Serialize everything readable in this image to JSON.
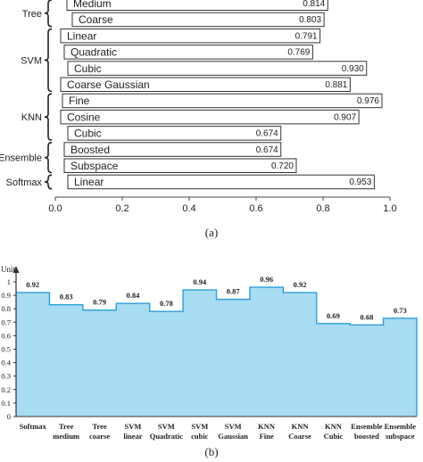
{
  "chart_data": [
    {
      "type": "bar",
      "orientation": "horizontal",
      "caption": "(a)",
      "groups": [
        {
          "name": "Tree",
          "items": [
            0,
            1
          ]
        },
        {
          "name": "SVM",
          "items": [
            2,
            3,
            4,
            5
          ]
        },
        {
          "name": "KNN",
          "items": [
            6,
            7,
            8
          ]
        },
        {
          "name": "Ensemble",
          "items": [
            9,
            10
          ]
        },
        {
          "name": "Softmax",
          "items": [
            11
          ]
        }
      ],
      "categories": [
        "Medium",
        "Coarse",
        "Linear",
        "Quadratic",
        "Cubic",
        "Coarse Gaussian",
        "Fine",
        "Cosine",
        "Cubic",
        "Boosted",
        "Subspace",
        "Linear"
      ],
      "values": [
        0.814,
        0.803,
        0.791,
        0.769,
        0.93,
        0.881,
        0.976,
        0.907,
        0.674,
        0.674,
        0.72,
        0.953
      ],
      "labels": [
        "0.814",
        "0.803",
        "0.791",
        "0.769",
        "0.930",
        "0.881",
        "0.976",
        "0.907",
        "0.674",
        "0.674",
        "0.720",
        "0.953"
      ],
      "xlim": [
        0.0,
        1.0
      ],
      "xticks": [
        "0.0",
        "0.2",
        "0.4",
        "0.6",
        "0.8",
        "1.0"
      ],
      "grid": false,
      "colors": {
        "bar_fill": "#ffffff",
        "bar_stroke": "#333333"
      }
    },
    {
      "type": "area",
      "caption": "(b)",
      "ylabel": "Unit",
      "categories": [
        [
          "Softmax"
        ],
        [
          "Tree",
          "medium"
        ],
        [
          "Tree",
          "coarse"
        ],
        [
          "SVM",
          "linear"
        ],
        [
          "SVM",
          "Quadratic"
        ],
        [
          "SVM",
          "cubic"
        ],
        [
          "SVM",
          "Gaussian"
        ],
        [
          "KNN",
          "Fine"
        ],
        [
          "KNN",
          "Coarse"
        ],
        [
          "KNN",
          "Cubic"
        ],
        [
          "Ensemble",
          "boosted"
        ],
        [
          "Ensemble",
          "subspace"
        ]
      ],
      "values": [
        0.92,
        0.83,
        0.79,
        0.84,
        0.78,
        0.94,
        0.87,
        0.96,
        0.92,
        0.69,
        0.68,
        0.73
      ],
      "labels": [
        "0.92",
        "0.83",
        "0.79",
        "0.84",
        "0.78",
        "0.94",
        "0.87",
        "0.96",
        "0.92",
        "0.69",
        "0.68",
        "0.73"
      ],
      "ylim": [
        0,
        1
      ],
      "yticks": [
        "0",
        "0.1",
        "0.2",
        "0.3",
        "0.4",
        "0.5",
        "0.6",
        "0.7",
        "0.8",
        "0.9",
        "1"
      ],
      "grid": false,
      "colors": {
        "fill": "#a8dcf3",
        "stroke": "#2a9fd8"
      }
    }
  ]
}
